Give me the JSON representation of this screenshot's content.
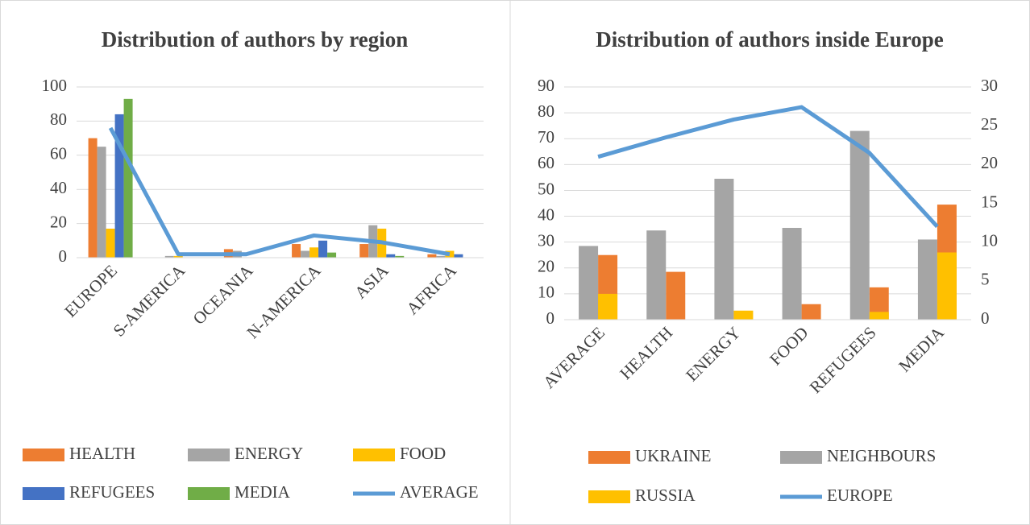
{
  "chart_data": [
    {
      "type": "bar",
      "title": "Distribution of authors by region",
      "categories": [
        "EUROPE",
        "S-AMERICA",
        "OCEANIA",
        "N-AMERICA",
        "ASIA",
        "AFRICA"
      ],
      "series": [
        {
          "name": "HEALTH",
          "color": "#ed7d31",
          "values": [
            70,
            0,
            5,
            8,
            8,
            2
          ]
        },
        {
          "name": "ENERGY",
          "color": "#a5a5a5",
          "values": [
            65,
            1,
            4,
            4,
            19,
            1
          ]
        },
        {
          "name": "FOOD",
          "color": "#ffc000",
          "values": [
            17,
            1,
            0,
            6,
            17,
            4
          ]
        },
        {
          "name": "REFUGEES",
          "color": "#4472c4",
          "values": [
            84,
            0,
            0,
            10,
            2,
            2
          ]
        },
        {
          "name": "MEDIA",
          "color": "#70ad47",
          "values": [
            93,
            0,
            0,
            3,
            1,
            0
          ]
        },
        {
          "name": "AVERAGE",
          "color": "#5b9bd5",
          "type": "line",
          "values": [
            76,
            2,
            2,
            13,
            9,
            2
          ]
        }
      ],
      "ylim": [
        0,
        100
      ],
      "yticks": [
        0,
        20,
        40,
        60,
        80,
        100
      ],
      "grid": true
    },
    {
      "type": "bar",
      "title": "Distribution of authors inside Europe",
      "categories": [
        "AVERAGE",
        "HEALTH",
        "ENERGY",
        "FOOD",
        "REFUGEES",
        "MEDIA"
      ],
      "series": [
        {
          "name": "UKRAINE",
          "color": "#ed7d31",
          "values": [
            25,
            18.5,
            0,
            6,
            12.5,
            44.5
          ]
        },
        {
          "name": "NEIGHBOURS",
          "color": "#a5a5a5",
          "values": [
            28.5,
            34.5,
            54.5,
            35.5,
            73,
            31
          ]
        },
        {
          "name": "RUSSIA",
          "color": "#ffc000",
          "values": [
            10,
            0,
            3.5,
            0,
            3,
            26
          ]
        },
        {
          "name": "EUROPE",
          "color": "#5b9bd5",
          "type": "line",
          "axis": "y2",
          "values": [
            21,
            23.5,
            25.8,
            27.4,
            21.5,
            12
          ]
        }
      ],
      "ylim": [
        0,
        90
      ],
      "yticks": [
        0,
        10,
        20,
        30,
        40,
        50,
        60,
        70,
        80,
        90
      ],
      "y2lim": [
        0,
        30
      ],
      "y2ticks": [
        0,
        5,
        10,
        15,
        20,
        25,
        30
      ],
      "grid": true
    }
  ]
}
